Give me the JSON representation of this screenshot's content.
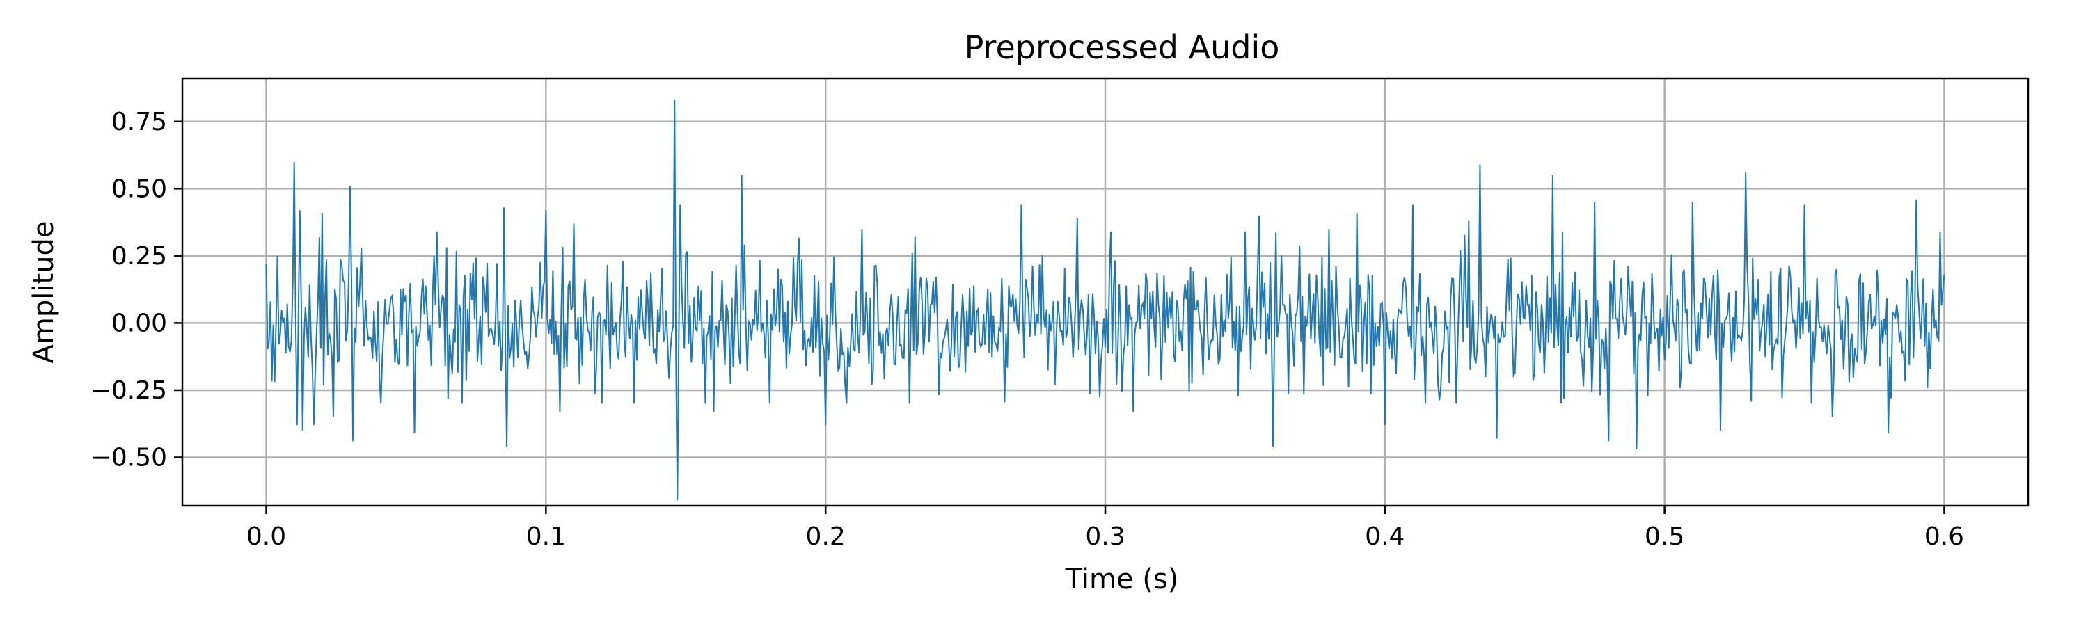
{
  "chart_data": {
    "type": "line",
    "title": "Preprocessed Audio",
    "xlabel": "Time (s)",
    "ylabel": "Amplitude",
    "xlim": [
      -0.03,
      0.63
    ],
    "ylim": [
      -0.68,
      0.91
    ],
    "xticks": [
      0.0,
      0.1,
      0.2,
      0.3,
      0.4,
      0.5,
      0.6
    ],
    "xtick_labels": [
      "0.0",
      "0.1",
      "0.2",
      "0.3",
      "0.4",
      "0.5",
      "0.6"
    ],
    "yticks": [
      -0.5,
      -0.25,
      0.0,
      0.25,
      0.5,
      0.75
    ],
    "ytick_labels": [
      "−0.50",
      "−0.25",
      "0.00",
      "0.25",
      "0.50",
      "0.75"
    ],
    "grid": true,
    "legend": "none",
    "colors": {
      "series": "#1f77b4",
      "grid": "#b0b0b0",
      "axes": "#000000"
    },
    "series": [
      {
        "x_start": 0.0,
        "x_end": 0.6,
        "sample_rate_hz": 2000,
        "typical_amplitude": 0.12,
        "peaks": [
          {
            "x": 0.0,
            "y": 0.22
          },
          {
            "x": 0.003,
            "y": -0.22
          },
          {
            "x": 0.004,
            "y": 0.25
          },
          {
            "x": 0.01,
            "y": 0.6
          },
          {
            "x": 0.011,
            "y": -0.38
          },
          {
            "x": 0.012,
            "y": 0.42
          },
          {
            "x": 0.013,
            "y": -0.4
          },
          {
            "x": 0.017,
            "y": -0.38
          },
          {
            "x": 0.019,
            "y": 0.32
          },
          {
            "x": 0.02,
            "y": 0.41
          },
          {
            "x": 0.024,
            "y": -0.35
          },
          {
            "x": 0.03,
            "y": 0.51
          },
          {
            "x": 0.031,
            "y": -0.44
          },
          {
            "x": 0.034,
            "y": 0.28
          },
          {
            "x": 0.041,
            "y": -0.3
          },
          {
            "x": 0.053,
            "y": -0.41
          },
          {
            "x": 0.06,
            "y": 0.25
          },
          {
            "x": 0.07,
            "y": -0.3
          },
          {
            "x": 0.085,
            "y": 0.43
          },
          {
            "x": 0.086,
            "y": -0.46
          },
          {
            "x": 0.1,
            "y": 0.42
          },
          {
            "x": 0.105,
            "y": -0.33
          },
          {
            "x": 0.11,
            "y": 0.37
          },
          {
            "x": 0.12,
            "y": -0.3
          },
          {
            "x": 0.146,
            "y": 0.83
          },
          {
            "x": 0.147,
            "y": -0.66
          },
          {
            "x": 0.148,
            "y": 0.44
          },
          {
            "x": 0.16,
            "y": -0.33
          },
          {
            "x": 0.17,
            "y": 0.55
          },
          {
            "x": 0.18,
            "y": -0.3
          },
          {
            "x": 0.2,
            "y": -0.38
          },
          {
            "x": 0.213,
            "y": 0.35
          },
          {
            "x": 0.23,
            "y": -0.3
          },
          {
            "x": 0.27,
            "y": 0.44
          },
          {
            "x": 0.29,
            "y": 0.39
          },
          {
            "x": 0.31,
            "y": -0.33
          },
          {
            "x": 0.355,
            "y": 0.4
          },
          {
            "x": 0.36,
            "y": -0.46
          },
          {
            "x": 0.38,
            "y": 0.35
          },
          {
            "x": 0.39,
            "y": 0.41
          },
          {
            "x": 0.4,
            "y": -0.38
          },
          {
            "x": 0.41,
            "y": 0.44
          },
          {
            "x": 0.43,
            "y": 0.38
          },
          {
            "x": 0.434,
            "y": 0.59
          },
          {
            "x": 0.44,
            "y": -0.43
          },
          {
            "x": 0.46,
            "y": 0.55
          },
          {
            "x": 0.475,
            "y": 0.45
          },
          {
            "x": 0.48,
            "y": -0.44
          },
          {
            "x": 0.49,
            "y": -0.47
          },
          {
            "x": 0.51,
            "y": 0.45
          },
          {
            "x": 0.52,
            "y": -0.4
          },
          {
            "x": 0.529,
            "y": 0.56
          },
          {
            "x": 0.55,
            "y": 0.44
          },
          {
            "x": 0.56,
            "y": -0.35
          },
          {
            "x": 0.58,
            "y": -0.41
          },
          {
            "x": 0.59,
            "y": 0.46
          },
          {
            "x": 0.6,
            "y": 0.18
          }
        ]
      }
    ]
  }
}
